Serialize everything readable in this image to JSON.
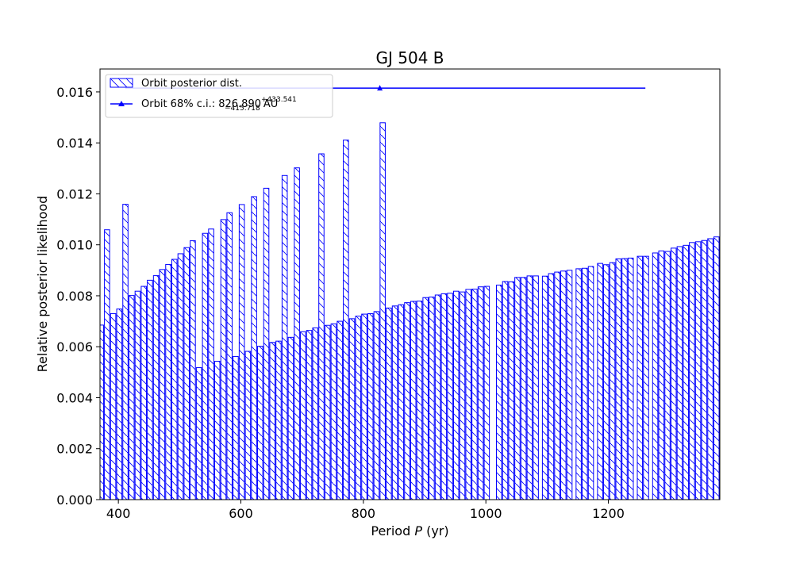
{
  "chart_data": {
    "type": "bar",
    "title": "GJ 504 B",
    "xlabel_prefix": "Period ",
    "xlabel_var": "P",
    "xlabel_suffix": " (yr)",
    "ylabel": "Relative posterior likelihood",
    "xlim": [
      370,
      1382
    ],
    "ylim": [
      0,
      0.0169
    ],
    "xticks": [
      400,
      600,
      800,
      1000,
      1200
    ],
    "xtick_labels": [
      "400",
      "600",
      "800",
      "1000",
      "1200"
    ],
    "yticks": [
      0,
      0.002,
      0.004,
      0.006,
      0.008,
      0.01,
      0.012,
      0.014,
      0.016
    ],
    "ytick_labels": [
      "0.000",
      "0.002",
      "0.004",
      "0.006",
      "0.008",
      "0.010",
      "0.012",
      "0.014",
      "0.016"
    ],
    "bar_color": "#0000ff",
    "hatch": "\\",
    "legend": {
      "position": "upper-left",
      "hist_label": "Orbit posterior dist.",
      "ci_prefix": "Orbit 68% c.i.: 826.890",
      "ci_plus": "+433.541",
      "ci_minus": "−415.718",
      "ci_suffix": " AU"
    },
    "credible_interval": {
      "center": 826.89,
      "low": 411.172,
      "high": 1260.431,
      "y": 0.01615
    },
    "bars": [
      {
        "x": 371.5,
        "v": 0.00685
      },
      {
        "x": 381.5,
        "v": 0.01059
      },
      {
        "x": 391.5,
        "v": 0.0073
      },
      {
        "x": 401.5,
        "v": 0.00748
      },
      {
        "x": 411.5,
        "v": 0.01159
      },
      {
        "x": 421.5,
        "v": 0.00801
      },
      {
        "x": 431.5,
        "v": 0.00818
      },
      {
        "x": 441.5,
        "v": 0.00837
      },
      {
        "x": 451.5,
        "v": 0.00861
      },
      {
        "x": 461.5,
        "v": 0.00879
      },
      {
        "x": 471.5,
        "v": 0.00903
      },
      {
        "x": 481.5,
        "v": 0.00923
      },
      {
        "x": 491.5,
        "v": 0.00943
      },
      {
        "x": 501.5,
        "v": 0.00965
      },
      {
        "x": 511.5,
        "v": 0.00989
      },
      {
        "x": 521.5,
        "v": 0.01016
      },
      {
        "x": 531.5,
        "v": 0.00518
      },
      {
        "x": 541.5,
        "v": 0.01045
      },
      {
        "x": 551.5,
        "v": 0.01062
      },
      {
        "x": 561.5,
        "v": 0.00543
      },
      {
        "x": 571.5,
        "v": 0.01099
      },
      {
        "x": 581.5,
        "v": 0.01126
      },
      {
        "x": 591.5,
        "v": 0.00562
      },
      {
        "x": 601.5,
        "v": 0.01158
      },
      {
        "x": 611.5,
        "v": 0.00582
      },
      {
        "x": 621.5,
        "v": 0.01189
      },
      {
        "x": 631.5,
        "v": 0.00602
      },
      {
        "x": 641.5,
        "v": 0.01222
      },
      {
        "x": 651.5,
        "v": 0.00617
      },
      {
        "x": 661.5,
        "v": 0.00622
      },
      {
        "x": 671.5,
        "v": 0.01272
      },
      {
        "x": 681.5,
        "v": 0.00637
      },
      {
        "x": 691.5,
        "v": 0.01302
      },
      {
        "x": 701.5,
        "v": 0.00659
      },
      {
        "x": 711.5,
        "v": 0.00664
      },
      {
        "x": 721.5,
        "v": 0.00674
      },
      {
        "x": 731.5,
        "v": 0.01357
      },
      {
        "x": 741.5,
        "v": 0.00684
      },
      {
        "x": 751.5,
        "v": 0.0069
      },
      {
        "x": 761.5,
        "v": 0.007
      },
      {
        "x": 771.5,
        "v": 0.01411
      },
      {
        "x": 781.5,
        "v": 0.0071
      },
      {
        "x": 791.5,
        "v": 0.0072
      },
      {
        "x": 801.5,
        "v": 0.00728
      },
      {
        "x": 811.5,
        "v": 0.0073
      },
      {
        "x": 821.5,
        "v": 0.00738
      },
      {
        "x": 831.5,
        "v": 0.01479
      },
      {
        "x": 841.5,
        "v": 0.00752
      },
      {
        "x": 851.5,
        "v": 0.0076
      },
      {
        "x": 861.5,
        "v": 0.00765
      },
      {
        "x": 871.5,
        "v": 0.00773
      },
      {
        "x": 881.5,
        "v": 0.00778
      },
      {
        "x": 891.5,
        "v": 0.00779
      },
      {
        "x": 901.5,
        "v": 0.00793
      },
      {
        "x": 911.5,
        "v": 0.00795
      },
      {
        "x": 921.5,
        "v": 0.00803
      },
      {
        "x": 931.5,
        "v": 0.00808
      },
      {
        "x": 941.5,
        "v": 0.0081
      },
      {
        "x": 951.5,
        "v": 0.00818
      },
      {
        "x": 961.5,
        "v": 0.00815
      },
      {
        "x": 971.5,
        "v": 0.00825
      },
      {
        "x": 981.5,
        "v": 0.00826
      },
      {
        "x": 991.5,
        "v": 0.00835
      },
      {
        "x": 1001.5,
        "v": 0.00837
      },
      {
        "x": 1021.5,
        "v": 0.00842
      },
      {
        "x": 1031.5,
        "v": 0.00856
      },
      {
        "x": 1041.5,
        "v": 0.00855
      },
      {
        "x": 1051.5,
        "v": 0.00872
      },
      {
        "x": 1061.5,
        "v": 0.00872
      },
      {
        "x": 1071.5,
        "v": 0.00878
      },
      {
        "x": 1081.5,
        "v": 0.00878
      },
      {
        "x": 1096.5,
        "v": 0.00877
      },
      {
        "x": 1106.5,
        "v": 0.00887
      },
      {
        "x": 1116.5,
        "v": 0.00893
      },
      {
        "x": 1126.5,
        "v": 0.00897
      },
      {
        "x": 1136.5,
        "v": 0.009
      },
      {
        "x": 1151.5,
        "v": 0.00906
      },
      {
        "x": 1161.5,
        "v": 0.00908
      },
      {
        "x": 1171.5,
        "v": 0.00915
      },
      {
        "x": 1186.5,
        "v": 0.00927
      },
      {
        "x": 1196.5,
        "v": 0.00922
      },
      {
        "x": 1206.5,
        "v": 0.0093
      },
      {
        "x": 1216.5,
        "v": 0.00945
      },
      {
        "x": 1226.5,
        "v": 0.00946
      },
      {
        "x": 1236.5,
        "v": 0.00948
      },
      {
        "x": 1251.5,
        "v": 0.00955
      },
      {
        "x": 1261.5,
        "v": 0.00955
      },
      {
        "x": 1276.5,
        "v": 0.00968
      },
      {
        "x": 1286.5,
        "v": 0.00976
      },
      {
        "x": 1296.5,
        "v": 0.00974
      },
      {
        "x": 1306.5,
        "v": 0.00987
      },
      {
        "x": 1316.5,
        "v": 0.00993
      },
      {
        "x": 1326.5,
        "v": 0.00998
      },
      {
        "x": 1336.5,
        "v": 0.01009
      },
      {
        "x": 1346.5,
        "v": 0.01012
      },
      {
        "x": 1356.5,
        "v": 0.01017
      },
      {
        "x": 1366.5,
        "v": 0.01024
      },
      {
        "x": 1376.5,
        "v": 0.01031
      }
    ],
    "bar_width": 8.5
  }
}
